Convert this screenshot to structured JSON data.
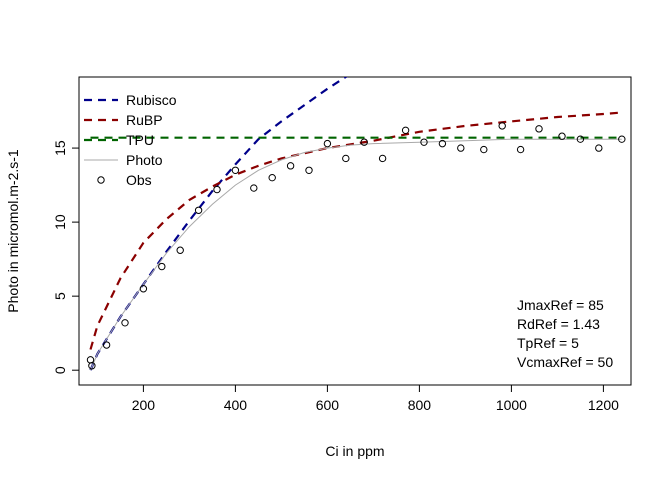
{
  "chart_data": {
    "type": "line",
    "title": "",
    "xlabel": "Ci in ppm",
    "ylabel": "Photo in micromol.m-2.s-1",
    "xlim": [
      60,
      1260
    ],
    "ylim": [
      -1,
      19.8
    ],
    "xticks": [
      200,
      400,
      600,
      800,
      1000,
      1200
    ],
    "yticks": [
      0,
      5,
      10,
      15
    ],
    "grid": false,
    "legend_position": "top-left",
    "series": [
      {
        "name": "Rubisco",
        "kind": "line",
        "color": "#00008B",
        "dash": "dashed",
        "x": [
          85,
          100,
          150,
          200,
          250,
          300,
          350,
          400,
          450,
          500,
          550,
          600,
          650
        ],
        "y": [
          0.0,
          1.1,
          3.6,
          5.8,
          8.0,
          10.1,
          12.1,
          13.9,
          15.6,
          16.8,
          17.9,
          19.0,
          20.0
        ]
      },
      {
        "name": "RuBP",
        "kind": "line",
        "color": "#8B0000",
        "dash": "dashed",
        "x": [
          85,
          100,
          150,
          200,
          250,
          300,
          350,
          400,
          450,
          500,
          600,
          700,
          800,
          900,
          1000,
          1100,
          1200,
          1240
        ],
        "y": [
          1.4,
          3.0,
          6.2,
          8.6,
          10.2,
          11.5,
          12.4,
          13.2,
          13.8,
          14.3,
          15.0,
          15.5,
          16.1,
          16.5,
          16.8,
          17.1,
          17.3,
          17.4
        ]
      },
      {
        "name": "TPU",
        "kind": "line",
        "color": "#006400",
        "dash": "dashed",
        "x": [
          85,
          1240
        ],
        "y": [
          15.7,
          15.7
        ]
      },
      {
        "name": "Photo",
        "kind": "line",
        "color": "#A9A9A9",
        "dash": "solid",
        "x": [
          85,
          100,
          150,
          200,
          250,
          300,
          350,
          400,
          450,
          500,
          550,
          600,
          650,
          700,
          800,
          900,
          1000,
          1100,
          1240
        ],
        "y": [
          0.0,
          1.1,
          3.6,
          5.8,
          7.9,
          9.7,
          11.2,
          12.5,
          13.5,
          14.2,
          14.7,
          15.0,
          15.2,
          15.3,
          15.4,
          15.5,
          15.6,
          15.6,
          15.6
        ]
      },
      {
        "name": "Obs",
        "kind": "points",
        "color": "#000000",
        "x": [
          85,
          88,
          120,
          160,
          200,
          240,
          280,
          320,
          360,
          400,
          440,
          480,
          520,
          560,
          600,
          640,
          680,
          720,
          770,
          810,
          850,
          890,
          940,
          980,
          1020,
          1060,
          1110,
          1150,
          1190,
          1240
        ],
        "y": [
          0.7,
          0.3,
          1.7,
          3.2,
          5.5,
          7.0,
          8.1,
          10.8,
          12.2,
          13.5,
          12.3,
          13.0,
          13.8,
          13.5,
          15.3,
          14.3,
          15.4,
          14.3,
          16.2,
          15.4,
          15.3,
          15.0,
          14.9,
          16.5,
          14.9,
          16.3,
          15.8,
          15.6,
          15.0,
          15.6
        ]
      }
    ],
    "annotations": [
      "JmaxRef = 85",
      "RdRef = 1.43",
      "TpRef = 5",
      "VcmaxRef = 50"
    ]
  }
}
